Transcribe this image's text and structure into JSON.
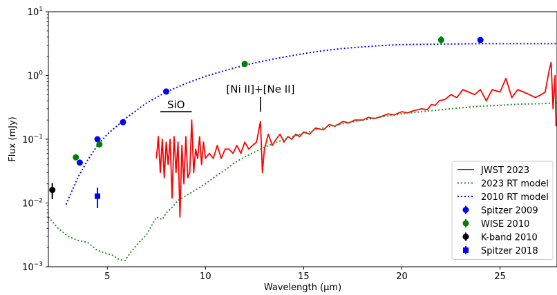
{
  "chart_data": {
    "type": "scatter",
    "title": "",
    "xlabel": "Wavelength (μm)",
    "ylabel": "Flux (mJy)",
    "xlim": [
      2.0,
      27.9
    ],
    "ylim": [
      0.001,
      10
    ],
    "yscale": "log",
    "grid": false,
    "legend_position": "lower right",
    "x_ticks": [
      {
        "value": 5,
        "label": "5"
      },
      {
        "value": 10,
        "label": "10"
      },
      {
        "value": 15,
        "label": "15"
      },
      {
        "value": 20,
        "label": "20"
      },
      {
        "value": 25,
        "label": "25"
      }
    ],
    "y_ticks": [
      {
        "value": 0.001,
        "base": "10",
        "exp": "−3"
      },
      {
        "value": 0.01,
        "base": "10",
        "exp": "−2"
      },
      {
        "value": 0.1,
        "base": "10",
        "exp": "−1"
      },
      {
        "value": 1,
        "base": "10",
        "exp": "0"
      },
      {
        "value": 10,
        "base": "10",
        "exp": "1"
      }
    ],
    "annotations": [
      {
        "label": "SiO",
        "x_start": 7.7,
        "x_end": 9.3,
        "y": 0.27,
        "type": "range"
      },
      {
        "label": "[Ni II]+[Ne II]",
        "x": 12.8,
        "y_low": 0.27,
        "y_high": 0.46,
        "type": "marker"
      }
    ],
    "series": [
      {
        "name": "JWST 2023",
        "kind": "line",
        "style": "solid",
        "color": "#ff0000",
        "x": [
          7.5,
          7.6,
          7.7,
          7.8,
          7.9,
          8.0,
          8.1,
          8.2,
          8.3,
          8.4,
          8.5,
          8.6,
          8.7,
          8.8,
          8.9,
          9.0,
          9.1,
          9.2,
          9.3,
          9.4,
          9.5,
          9.6,
          9.7,
          9.8,
          9.9,
          10.0,
          10.2,
          10.4,
          10.6,
          10.8,
          11.0,
          11.2,
          11.4,
          11.6,
          11.8,
          12.0,
          12.2,
          12.4,
          12.6,
          12.8,
          12.9,
          13.0,
          13.2,
          13.4,
          13.6,
          13.8,
          14.0,
          14.2,
          14.4,
          14.6,
          14.8,
          15.0,
          15.3,
          15.6,
          16.0,
          16.3,
          16.6,
          17.0,
          17.3,
          17.6,
          18.0,
          18.3,
          18.6,
          19.0,
          19.3,
          19.6,
          20.0,
          20.3,
          20.6,
          21.0,
          21.3,
          21.5,
          21.7,
          21.9,
          22.2,
          22.5,
          22.8,
          23.1,
          23.4,
          23.7,
          24.0,
          24.3,
          24.6,
          25.0,
          25.3,
          25.6,
          25.9,
          26.2,
          26.5,
          26.8,
          27.1,
          27.3,
          27.5,
          27.6,
          27.7,
          27.8,
          27.85
        ],
        "y": [
          0.05,
          0.11,
          0.03,
          0.1,
          0.025,
          0.09,
          0.04,
          0.1,
          0.012,
          0.11,
          0.03,
          0.09,
          0.006,
          0.08,
          0.02,
          0.11,
          0.025,
          0.03,
          0.2,
          0.03,
          0.07,
          0.05,
          0.11,
          0.04,
          0.09,
          0.05,
          0.06,
          0.05,
          0.08,
          0.05,
          0.07,
          0.07,
          0.06,
          0.08,
          0.06,
          0.09,
          0.07,
          0.08,
          0.09,
          0.19,
          0.03,
          0.07,
          0.12,
          0.08,
          0.1,
          0.12,
          0.09,
          0.11,
          0.1,
          0.12,
          0.11,
          0.13,
          0.12,
          0.15,
          0.14,
          0.17,
          0.16,
          0.19,
          0.18,
          0.2,
          0.2,
          0.22,
          0.21,
          0.23,
          0.25,
          0.24,
          0.27,
          0.26,
          0.28,
          0.3,
          0.29,
          0.35,
          0.34,
          0.4,
          0.42,
          0.5,
          0.45,
          0.6,
          0.55,
          0.5,
          0.6,
          0.4,
          0.6,
          0.55,
          0.9,
          0.45,
          0.6,
          0.55,
          0.5,
          0.45,
          0.5,
          0.55,
          1.2,
          1.6,
          0.3,
          1.0,
          0.16
        ]
      },
      {
        "name": "2023 RT model",
        "kind": "line",
        "style": "dotted",
        "color": "#228b22",
        "x": [
          2.0,
          2.5,
          3.0,
          3.5,
          4.0,
          4.5,
          5.0,
          5.3,
          5.6,
          5.9,
          6.2,
          6.5,
          7.0,
          7.5,
          7.8,
          8.0,
          8.3,
          8.6,
          9.0,
          9.5,
          10.0,
          10.5,
          11.0,
          11.5,
          12.0,
          12.5,
          13.0,
          14.0,
          15.0,
          16.0,
          17.0,
          18.0,
          19.0,
          20.0,
          21.0,
          22.0,
          23.0,
          24.0,
          25.0,
          26.0,
          27.0,
          27.9
        ],
        "y": [
          0.006,
          0.004,
          0.003,
          0.0026,
          0.0024,
          0.0018,
          0.0016,
          0.0015,
          0.0013,
          0.00125,
          0.0017,
          0.0022,
          0.0032,
          0.006,
          0.0055,
          0.007,
          0.0085,
          0.011,
          0.013,
          0.016,
          0.02,
          0.026,
          0.033,
          0.043,
          0.053,
          0.063,
          0.075,
          0.1,
          0.125,
          0.15,
          0.175,
          0.2,
          0.225,
          0.25,
          0.27,
          0.29,
          0.31,
          0.33,
          0.34,
          0.355,
          0.36,
          0.37
        ]
      },
      {
        "name": "2010 RT model",
        "kind": "line",
        "style": "dotted",
        "color": "#0000ff",
        "x": [
          2.9,
          3.5,
          4.0,
          4.5,
          5.0,
          6.0,
          7.0,
          8.0,
          9.0,
          10.0,
          11.0,
          12.0,
          13.0,
          14.0,
          15.0,
          16.0,
          17.0,
          18.0,
          19.0,
          20.0,
          22.0,
          24.0,
          26.0,
          27.9
        ],
        "y": [
          0.0095,
          0.025,
          0.047,
          0.08,
          0.12,
          0.22,
          0.37,
          0.55,
          0.75,
          0.97,
          1.2,
          1.45,
          1.7,
          1.95,
          2.2,
          2.45,
          2.65,
          2.8,
          2.95,
          3.05,
          3.1,
          3.15,
          3.15,
          3.15
        ]
      },
      {
        "name": "Spitzer 2009",
        "kind": "points",
        "marker": "circle",
        "color": "#0000ff",
        "x": [
          3.6,
          4.5,
          5.8,
          8.0,
          24.0
        ],
        "y": [
          0.043,
          0.1,
          0.185,
          0.56,
          3.6
        ]
      },
      {
        "name": "WISE 2010",
        "kind": "points",
        "marker": "circle",
        "color": "#008000",
        "x": [
          3.4,
          4.6,
          12.0,
          22.0
        ],
        "y": [
          0.052,
          0.083,
          1.52,
          3.6
        ],
        "err_low": [
          0,
          0.009,
          0,
          0.55
        ],
        "err_high": [
          0,
          0.009,
          0,
          0.55
        ]
      },
      {
        "name": "K-band 2010",
        "kind": "points",
        "marker": "circle",
        "color": "#000000",
        "x": [
          2.2
        ],
        "y": [
          0.016
        ],
        "err_low": [
          0.0045
        ],
        "err_high": [
          0.0045
        ]
      },
      {
        "name": "Spitzer 2018",
        "kind": "points",
        "marker": "square",
        "color": "#0000ff",
        "x": [
          4.5
        ],
        "y": [
          0.0128
        ],
        "err_low": [
          0.0045
        ],
        "err_high": [
          0.0045
        ]
      }
    ]
  }
}
